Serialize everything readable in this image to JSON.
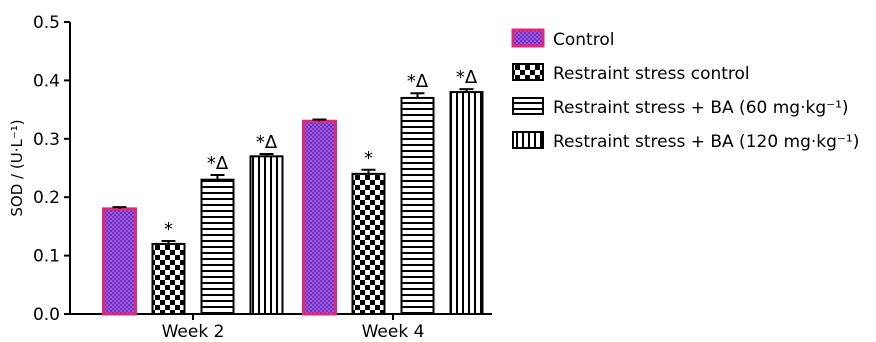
{
  "chart_data": {
    "type": "bar",
    "ylabel": "SOD / (U·L⁻¹)",
    "ylim": [
      0,
      0.5
    ],
    "yticks": [
      "0.0",
      "0.1",
      "0.2",
      "0.3",
      "0.4",
      "0.5"
    ],
    "categories": [
      "Week 2",
      "Week 4"
    ],
    "legend_position": "right",
    "grid": false,
    "series": [
      {
        "name": "Control",
        "values": [
          0.18,
          0.33
        ],
        "errors": [
          0.003,
          0.003
        ],
        "annotations": [
          "",
          ""
        ],
        "pattern": "pink-checker",
        "color": "#e0287a"
      },
      {
        "name": "Restraint stress control",
        "values": [
          0.12,
          0.24
        ],
        "errors": [
          0.005,
          0.007
        ],
        "annotations": [
          "*",
          "*"
        ],
        "pattern": "checker"
      },
      {
        "name": "Restraint stress + BA (60 mg·kg⁻¹)",
        "values": [
          0.23,
          0.37
        ],
        "errors": [
          0.008,
          0.008
        ],
        "annotations": [
          "*Δ",
          "*Δ"
        ],
        "pattern": "horizontal-lines"
      },
      {
        "name": "Restraint stress + BA (120 mg·kg⁻¹)",
        "values": [
          0.27,
          0.38
        ],
        "errors": [
          0.004,
          0.005
        ],
        "annotations": [
          "*Δ",
          "*Δ"
        ],
        "pattern": "vertical-lines"
      }
    ]
  }
}
